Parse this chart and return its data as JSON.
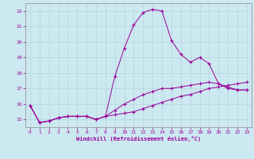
{
  "xlabel": "Windchill (Refroidissement éolien,°C)",
  "bg_color": "#cce8f0",
  "grid_color": "#b8d8e0",
  "line_color": "#990099",
  "spine_color": "#888888",
  "xlim": [
    -0.5,
    23.5
  ],
  "ylim": [
    14.5,
    22.5
  ],
  "xticks": [
    0,
    1,
    2,
    3,
    4,
    5,
    6,
    7,
    8,
    9,
    10,
    11,
    12,
    13,
    14,
    15,
    16,
    17,
    18,
    19,
    20,
    21,
    22,
    23
  ],
  "yticks": [
    15,
    16,
    17,
    18,
    19,
    20,
    21,
    22
  ],
  "line1_x": [
    0,
    1,
    2,
    3,
    4,
    5,
    6,
    7,
    8,
    9,
    10,
    11,
    12,
    13,
    14,
    15,
    16,
    17,
    18,
    19,
    20,
    21,
    22,
    23
  ],
  "line1_y": [
    15.9,
    14.8,
    14.9,
    15.1,
    15.2,
    15.2,
    15.2,
    15.0,
    15.2,
    17.8,
    19.6,
    21.1,
    21.9,
    22.1,
    22.0,
    20.1,
    19.2,
    18.7,
    19.0,
    18.6,
    17.3,
    17.0,
    16.9,
    16.9
  ],
  "line2_x": [
    0,
    1,
    2,
    3,
    4,
    5,
    6,
    7,
    8,
    9,
    10,
    11,
    12,
    13,
    14,
    15,
    16,
    17,
    18,
    19,
    20,
    21,
    22,
    23
  ],
  "line2_y": [
    15.9,
    14.8,
    14.9,
    15.1,
    15.2,
    15.2,
    15.2,
    15.0,
    15.2,
    15.3,
    15.4,
    15.5,
    15.7,
    15.9,
    16.1,
    16.3,
    16.5,
    16.6,
    16.8,
    17.0,
    17.1,
    17.2,
    17.3,
    17.4
  ],
  "line3_x": [
    0,
    1,
    2,
    3,
    4,
    5,
    6,
    7,
    8,
    9,
    10,
    11,
    12,
    13,
    14,
    15,
    16,
    17,
    18,
    19,
    20,
    21,
    22,
    23
  ],
  "line3_y": [
    15.9,
    14.8,
    14.9,
    15.1,
    15.2,
    15.2,
    15.2,
    15.0,
    15.2,
    15.6,
    16.0,
    16.3,
    16.6,
    16.8,
    17.0,
    17.0,
    17.1,
    17.2,
    17.3,
    17.4,
    17.3,
    17.1,
    16.9,
    16.9
  ]
}
